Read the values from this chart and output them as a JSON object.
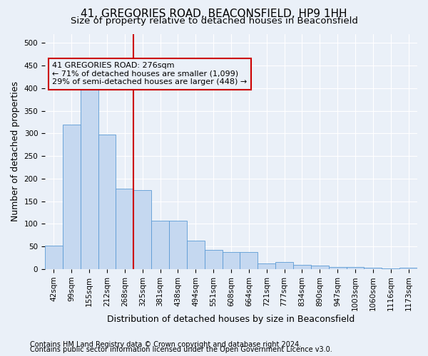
{
  "title": "41, GREGORIES ROAD, BEACONSFIELD, HP9 1HH",
  "subtitle": "Size of property relative to detached houses in Beaconsfield",
  "xlabel": "Distribution of detached houses by size in Beaconsfield",
  "ylabel": "Number of detached properties",
  "footnote1": "Contains HM Land Registry data © Crown copyright and database right 2024.",
  "footnote2": "Contains public sector information licensed under the Open Government Licence v3.0.",
  "categories": [
    "42sqm",
    "99sqm",
    "155sqm",
    "212sqm",
    "268sqm",
    "325sqm",
    "381sqm",
    "438sqm",
    "494sqm",
    "551sqm",
    "608sqm",
    "664sqm",
    "721sqm",
    "777sqm",
    "834sqm",
    "890sqm",
    "947sqm",
    "1003sqm",
    "1060sqm",
    "1116sqm",
    "1173sqm"
  ],
  "bar_values": [
    52,
    320,
    400,
    297,
    178,
    175,
    107,
    107,
    63,
    42,
    37,
    37,
    12,
    15,
    10,
    8,
    5,
    4,
    3,
    2,
    3
  ],
  "bar_color": "#c5d8f0",
  "bar_edge_color": "#5b9bd5",
  "vline_color": "#cc0000",
  "vline_pos": 4.5,
  "annotation_text": "41 GREGORIES ROAD: 276sqm\n← 71% of detached houses are smaller (1,099)\n29% of semi-detached houses are larger (448) →",
  "ylim": [
    0,
    520
  ],
  "yticks": [
    0,
    50,
    100,
    150,
    200,
    250,
    300,
    350,
    400,
    450,
    500
  ],
  "bg_color": "#eaf0f8",
  "grid_color": "#ffffff",
  "title_fontsize": 11,
  "subtitle_fontsize": 9.5,
  "axis_label_fontsize": 9,
  "tick_fontsize": 7.5,
  "footnote_fontsize": 7
}
